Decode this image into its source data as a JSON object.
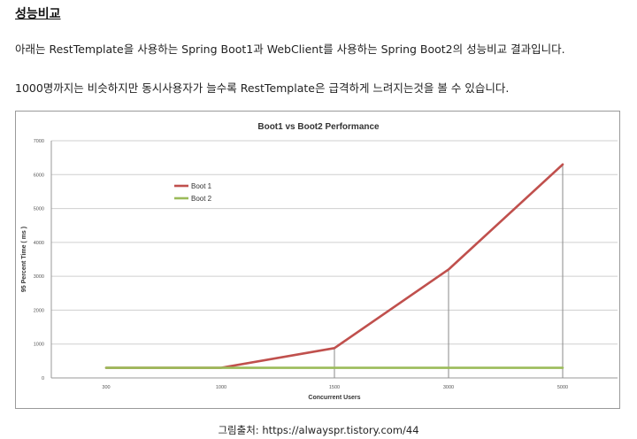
{
  "article": {
    "heading": "성능비교",
    "paragraph1": "아래는 RestTemplate을 사용하는 Spring Boot1과 WebClient를 사용하는 Spring Boot2의 성능비교 결과입니다.",
    "paragraph2": "1000명까지는 비슷하지만 동시사용자가 늘수록 RestTemplate은 급격하게 느려지는것을 볼 수 있습니다.",
    "caption": "그림출처: https://alwayspr.tistory.com/44"
  },
  "chart_data": {
    "type": "line",
    "title": "Boot1 vs Boot2 Performance",
    "xlabel": "Concurrent Users",
    "ylabel": "95 Percent Time ( ms )",
    "categories": [
      "300",
      "1000",
      "1500",
      "3000",
      "5000"
    ],
    "ylim": [
      0,
      7000
    ],
    "yticks": [
      0,
      1000,
      2000,
      3000,
      4000,
      5000,
      6000,
      7000
    ],
    "grid": true,
    "legend": "upper-left",
    "series": [
      {
        "name": "Boot 1",
        "color": "#c0504d",
        "values": [
          300,
          300,
          880,
          3200,
          6300
        ]
      },
      {
        "name": "Boot 2",
        "color": "#9bbb59",
        "values": [
          300,
          300,
          300,
          300,
          300
        ]
      }
    ]
  }
}
